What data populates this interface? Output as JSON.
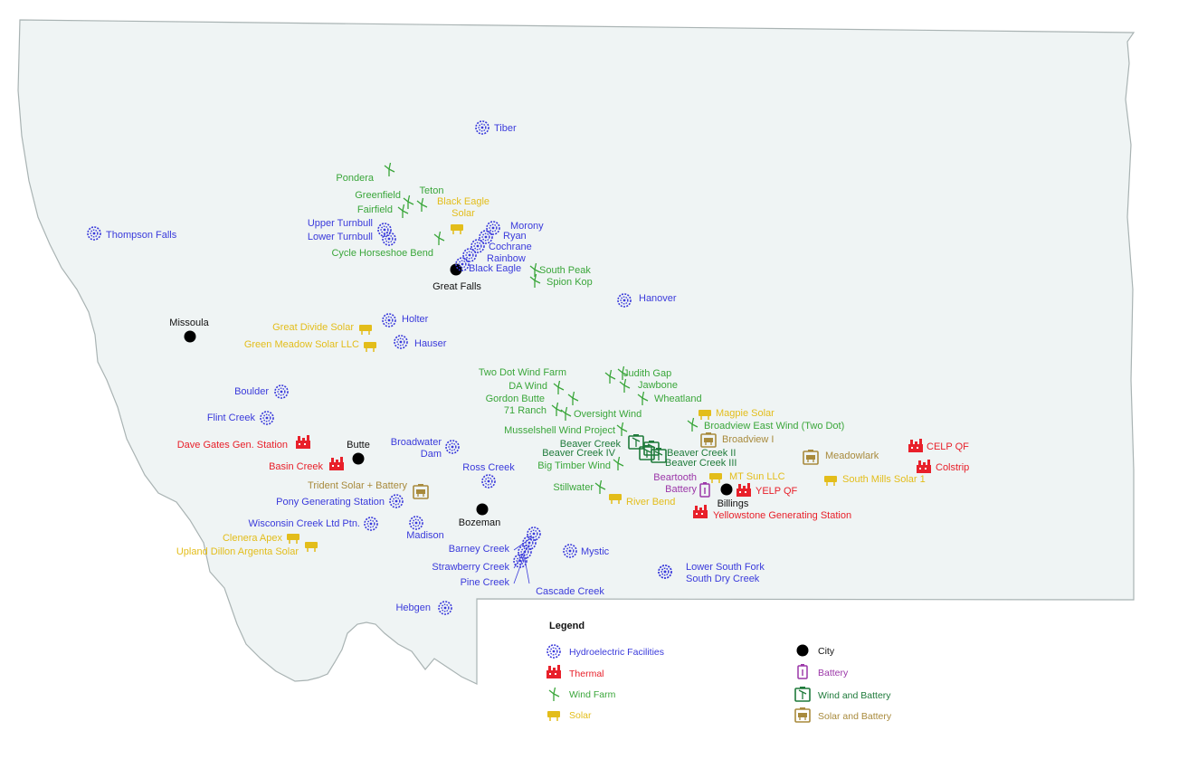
{
  "colors": {
    "hydro": "#3a3adb",
    "thermal": "#e8202a",
    "wind": "#3aa63a",
    "solar": "#e3bd1a",
    "city": "#000000",
    "battery": "#9b36a8",
    "wind_battery": "#1e7a3a",
    "solar_battery": "#a88a3c",
    "land": "#eff4f4",
    "border": "#a9b3b3"
  },
  "legend": {
    "title": "Legend",
    "items": [
      {
        "type": "hydro",
        "label": "Hydroelectric Facilities"
      },
      {
        "type": "thermal",
        "label": "Thermal"
      },
      {
        "type": "wind",
        "label": "Wind Farm"
      },
      {
        "type": "solar",
        "label": "Solar"
      },
      {
        "type": "city",
        "label": "City"
      },
      {
        "type": "battery",
        "label": "Battery"
      },
      {
        "type": "wind_battery",
        "label": "Wind and Battery"
      },
      {
        "type": "solar_battery",
        "label": "Solar and Battery"
      }
    ]
  },
  "cities": [
    {
      "name": "Great Falls"
    },
    {
      "name": "Missoula"
    },
    {
      "name": "Butte"
    },
    {
      "name": "Bozeman"
    },
    {
      "name": "Billings"
    }
  ],
  "hydro": [
    {
      "name": "Tiber"
    },
    {
      "name": "Thompson Falls"
    },
    {
      "name": "Upper Turnbull"
    },
    {
      "name": "Lower Turnbull"
    },
    {
      "name": "Morony"
    },
    {
      "name": "Ryan"
    },
    {
      "name": "Cochrane"
    },
    {
      "name": "Rainbow"
    },
    {
      "name": "Black Eagle"
    },
    {
      "name": "Hanover"
    },
    {
      "name": "Holter"
    },
    {
      "name": "Hauser"
    },
    {
      "name": "Boulder"
    },
    {
      "name": "Flint Creek"
    },
    {
      "name": "Broadwater Dam"
    },
    {
      "name": "Ross Creek"
    },
    {
      "name": "Pony Generating Station"
    },
    {
      "name": "Wisconsin Creek Ltd Ptn."
    },
    {
      "name": "Madison"
    },
    {
      "name": "Barney Creek"
    },
    {
      "name": "Strawberry Creek"
    },
    {
      "name": "Pine Creek"
    },
    {
      "name": "Cascade Creek"
    },
    {
      "name": "Mystic"
    },
    {
      "name": "Lower South Fork"
    },
    {
      "name": "South Dry Creek"
    },
    {
      "name": "Hebgen"
    }
  ],
  "wind": [
    {
      "name": "Pondera"
    },
    {
      "name": "Greenfield"
    },
    {
      "name": "Teton"
    },
    {
      "name": "Fairfield"
    },
    {
      "name": "Cycle Horseshoe Bend"
    },
    {
      "name": "South Peak"
    },
    {
      "name": "Spion Kop"
    },
    {
      "name": "Two Dot Wind Farm"
    },
    {
      "name": "Judith Gap"
    },
    {
      "name": "DA Wind"
    },
    {
      "name": "Jawbone"
    },
    {
      "name": "Gordon Butte"
    },
    {
      "name": "Wheatland"
    },
    {
      "name": "71 Ranch"
    },
    {
      "name": "Oversight Wind"
    },
    {
      "name": "Musselshell Wind Project"
    },
    {
      "name": "Broadview East Wind (Two Dot)"
    },
    {
      "name": "Big Timber Wind"
    },
    {
      "name": "Stillwater"
    }
  ],
  "solar": [
    {
      "name": "Black Eagle Solar"
    },
    {
      "name": "Great Divide Solar"
    },
    {
      "name": "Green Meadow Solar LLC"
    },
    {
      "name": "Magpie Solar"
    },
    {
      "name": "MT Sun LLC"
    },
    {
      "name": "South Mills Solar 1"
    },
    {
      "name": "River Bend"
    },
    {
      "name": "Clenera Apex"
    },
    {
      "name": "Upland Dillon Argenta Solar"
    }
  ],
  "thermal": [
    {
      "name": "Dave Gates Gen. Station"
    },
    {
      "name": "Basin Creek"
    },
    {
      "name": "CELP QF"
    },
    {
      "name": "Colstrip"
    },
    {
      "name": "YELP QF"
    },
    {
      "name": "Yellowstone Generating Station"
    }
  ],
  "wind_battery": [
    {
      "name": "Beaver Creek"
    },
    {
      "name": "Beaver Creek IV"
    },
    {
      "name": "Beaver Creek II"
    },
    {
      "name": "Beaver Creek III"
    }
  ],
  "solar_battery": [
    {
      "name": "Trident Solar + Battery"
    },
    {
      "name": "Broadview I"
    },
    {
      "name": "Meadowlark"
    }
  ],
  "battery": [
    {
      "name": "Beartooth Battery"
    }
  ]
}
